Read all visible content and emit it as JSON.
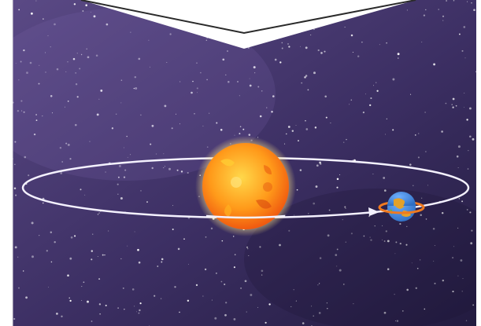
{
  "scene": {
    "subject": "sun-and-earth-orbit",
    "colors": {
      "space_light": "#5b4a86",
      "space_mid": "#3c2f63",
      "space_dark": "#221b3f",
      "frame": "#ffffff",
      "orbit": "#f4f1ff",
      "sun_core": "#ffd84a",
      "sun_mid": "#ff9a1a",
      "sun_edge": "#f05a10",
      "sun_glow": "#ffe88a",
      "earth_ocean": "#2f6fc4",
      "earth_land": "#e4a12a",
      "earth_ring": "#f07a20"
    },
    "icons": {
      "sun": "sun-icon",
      "earth": "earth-icon",
      "orbit_arrow": "arrowhead-icon"
    }
  }
}
